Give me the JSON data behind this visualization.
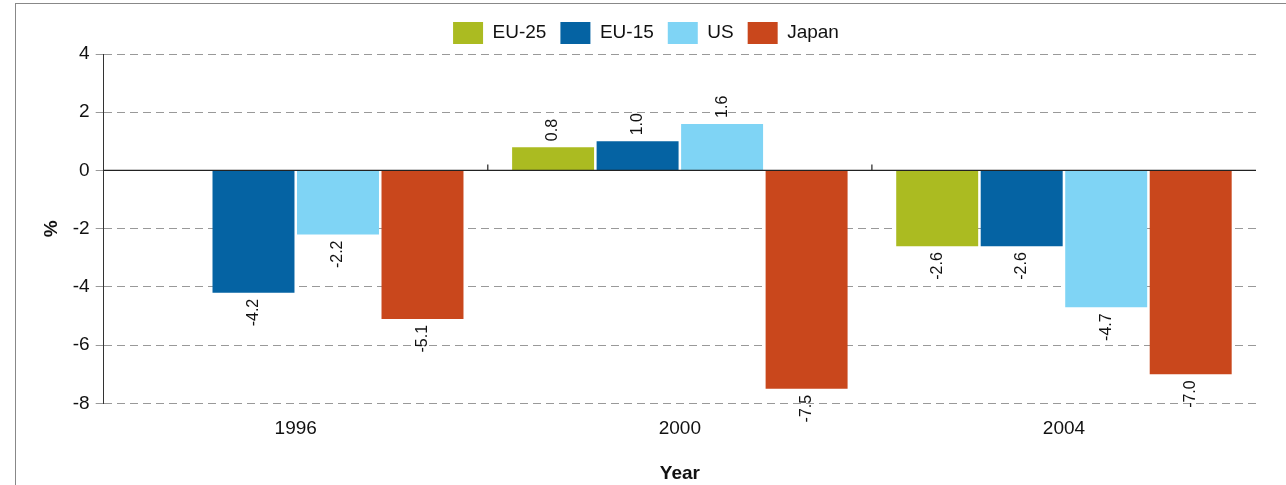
{
  "chart_data": {
    "type": "bar",
    "xlabel": "Year",
    "ylabel": "%",
    "categories": [
      "1996",
      "2000",
      "2004"
    ],
    "series": [
      {
        "name": "EU-25",
        "color": "#abbb21",
        "values": [
          null,
          0.8,
          -2.6
        ],
        "value_labels": [
          null,
          "0.8",
          "-2.6"
        ]
      },
      {
        "name": "EU-15",
        "color": "#0563a3",
        "values": [
          -4.2,
          1.0,
          -2.6
        ],
        "value_labels": [
          "-4.2",
          "1.0",
          "-2.6"
        ]
      },
      {
        "name": "US",
        "color": "#7fd4f5",
        "values": [
          -2.2,
          1.6,
          -4.7
        ],
        "value_labels": [
          "-2.2",
          "1.6",
          "-4.7"
        ]
      },
      {
        "name": "Japan",
        "color": "#c9471c",
        "values": [
          -5.1,
          -7.5,
          -7.0
        ],
        "value_labels": [
          "-5.1",
          "-7.5",
          "-7.0"
        ]
      }
    ],
    "ylim": [
      -8,
      4
    ],
    "yticks": [
      -8,
      -6,
      -4,
      -2,
      0,
      2,
      4
    ],
    "grid": "y",
    "legend": "top"
  }
}
